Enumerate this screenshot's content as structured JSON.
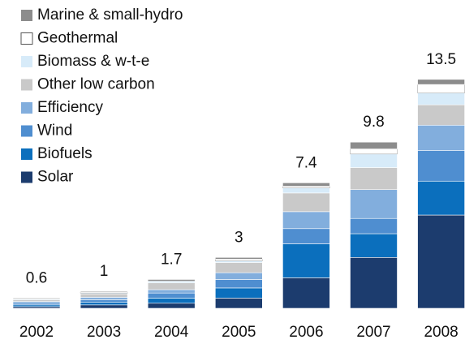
{
  "chart_data": {
    "type": "stacked_bar",
    "categories": [
      "2002",
      "2003",
      "2004",
      "2005",
      "2006",
      "2007",
      "2008"
    ],
    "totals": [
      0.6,
      1.0,
      1.7,
      3.0,
      7.4,
      9.8,
      13.5
    ],
    "series": [
      {
        "name": "Solar",
        "color": "#1c3c6e",
        "values": [
          0.1,
          0.2,
          0.3,
          0.6,
          1.8,
          3.0,
          5.5
        ]
      },
      {
        "name": "Biofuels",
        "color": "#0b6fbd",
        "values": [
          0.1,
          0.15,
          0.3,
          0.6,
          2.0,
          1.4,
          2.0
        ]
      },
      {
        "name": "Wind",
        "color": "#4f8ed0",
        "values": [
          0.1,
          0.15,
          0.3,
          0.5,
          0.9,
          0.9,
          1.8
        ]
      },
      {
        "name": "Efficiency",
        "color": "#82aedd",
        "values": [
          0.1,
          0.15,
          0.2,
          0.4,
          1.0,
          1.7,
          1.5
        ]
      },
      {
        "name": "Other low carbon",
        "color": "#c9c9c9",
        "values": [
          0.1,
          0.2,
          0.4,
          0.6,
          1.1,
          1.3,
          1.2
        ]
      },
      {
        "name": "Biomass & w-t-e",
        "color": "#d7ebf9",
        "values": [
          0.05,
          0.05,
          0.1,
          0.1,
          0.3,
          0.8,
          0.7
        ]
      },
      {
        "name": "Geothermal",
        "color": "#ffffff",
        "values": [
          0,
          0.05,
          0,
          0.1,
          0.1,
          0.3,
          0.5
        ]
      },
      {
        "name": "Marine & small-hydro",
        "color": "#8c8c8c",
        "values": [
          0.05,
          0.05,
          0.1,
          0.1,
          0.2,
          0.4,
          0.3
        ]
      }
    ]
  }
}
